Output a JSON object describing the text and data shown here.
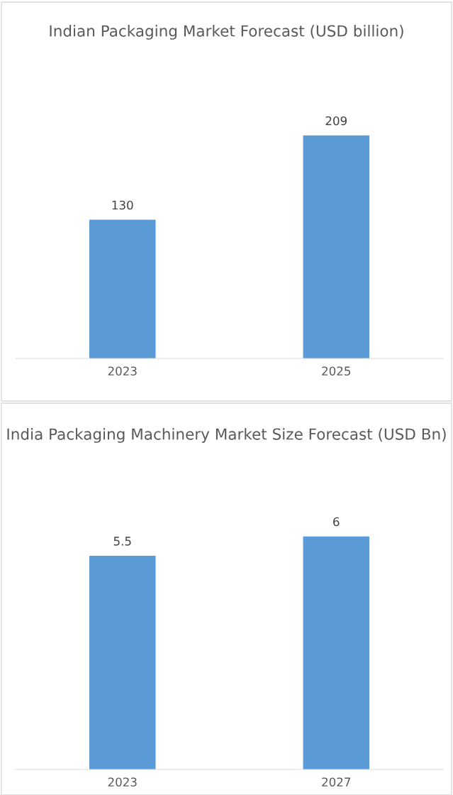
{
  "chart_data": [
    {
      "type": "bar",
      "title": "Indian Packaging Market Forecast (USD billion)",
      "categories": [
        "2023",
        "2025"
      ],
      "values": [
        130,
        209
      ],
      "color": "#5b9bd5",
      "tick_labels": "x",
      "data_labels": true,
      "grid": false,
      "legend": false
    },
    {
      "type": "bar",
      "title": "India Packaging Machinery Market Size Forecast (USD Bn)",
      "categories": [
        "2023",
        "2027"
      ],
      "values": [
        5.5,
        6
      ],
      "color": "#5b9bd5",
      "tick_labels": "x",
      "data_labels": true,
      "grid": false,
      "legend": false
    }
  ]
}
